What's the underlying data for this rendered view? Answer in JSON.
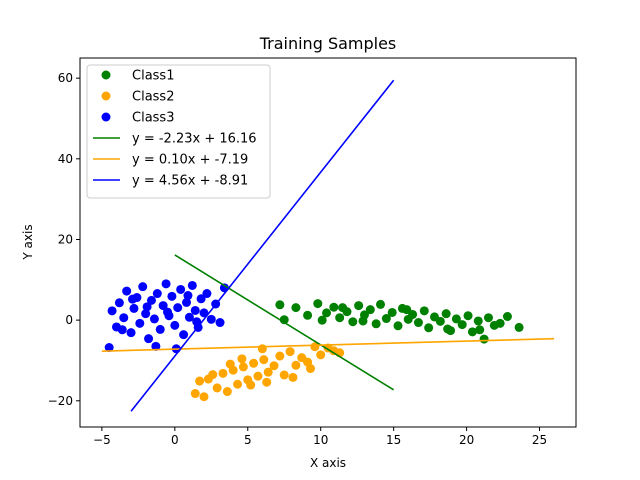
{
  "chart_data": {
    "type": "scatter",
    "title": "Training Samples",
    "xlabel": "X axis",
    "ylabel": "Y axis",
    "xlim": [
      -6.5,
      27.5
    ],
    "ylim": [
      -26.5,
      65
    ],
    "xticks": [
      -5,
      0,
      5,
      10,
      15,
      20,
      25
    ],
    "yticks": [
      -20,
      0,
      20,
      40,
      60
    ],
    "grid": false,
    "legend_position": "top-left",
    "scatter_series": [
      {
        "name": "Class1",
        "color": "#008000",
        "points": [
          [
            7.2,
            3.8
          ],
          [
            7.5,
            0.1
          ],
          [
            8.3,
            3.1
          ],
          [
            9.1,
            1.2
          ],
          [
            9.8,
            4.1
          ],
          [
            10.1,
            0.0
          ],
          [
            10.4,
            1.8
          ],
          [
            10.9,
            3.2
          ],
          [
            11.3,
            0.6
          ],
          [
            11.8,
            2.1
          ],
          [
            12.2,
            -0.4
          ],
          [
            12.6,
            3.6
          ],
          [
            13.0,
            1.3
          ],
          [
            13.4,
            2.6
          ],
          [
            13.8,
            -0.9
          ],
          [
            14.1,
            3.9
          ],
          [
            14.5,
            0.4
          ],
          [
            14.9,
            1.9
          ],
          [
            15.3,
            -1.4
          ],
          [
            15.6,
            2.9
          ],
          [
            16.0,
            0.2
          ],
          [
            16.3,
            1.4
          ],
          [
            16.7,
            -0.6
          ],
          [
            17.1,
            2.3
          ],
          [
            17.4,
            -1.9
          ],
          [
            17.8,
            0.8
          ],
          [
            18.2,
            -0.3
          ],
          [
            18.6,
            1.6
          ],
          [
            18.9,
            -2.6
          ],
          [
            19.3,
            0.3
          ],
          [
            19.7,
            -1.1
          ],
          [
            20.1,
            1.1
          ],
          [
            20.4,
            -2.9
          ],
          [
            20.8,
            -0.2
          ],
          [
            21.2,
            -4.7
          ],
          [
            21.5,
            0.6
          ],
          [
            21.9,
            -1.3
          ],
          [
            22.3,
            -0.8
          ],
          [
            22.8,
            0.9
          ],
          [
            23.6,
            -1.8
          ],
          [
            12.9,
            -0.2
          ],
          [
            15.9,
            2.6
          ],
          [
            18.7,
            -2.2
          ],
          [
            20.9,
            -2.4
          ],
          [
            11.5,
            3.1
          ]
        ]
      },
      {
        "name": "Class2",
        "color": "#ffa500",
        "points": [
          [
            1.4,
            -18.2
          ],
          [
            1.7,
            -15.1
          ],
          [
            2.0,
            -19.0
          ],
          [
            2.3,
            -14.6
          ],
          [
            2.9,
            -16.8
          ],
          [
            3.3,
            -13.2
          ],
          [
            3.6,
            -17.7
          ],
          [
            4.0,
            -12.4
          ],
          [
            4.3,
            -15.9
          ],
          [
            4.7,
            -11.6
          ],
          [
            5.0,
            -14.8
          ],
          [
            5.4,
            -10.7
          ],
          [
            5.7,
            -13.9
          ],
          [
            6.1,
            -9.8
          ],
          [
            6.4,
            -12.9
          ],
          [
            6.8,
            -11.3
          ],
          [
            7.2,
            -8.9
          ],
          [
            7.5,
            -13.6
          ],
          [
            7.9,
            -7.8
          ],
          [
            8.3,
            -11.2
          ],
          [
            8.7,
            -9.3
          ],
          [
            9.1,
            -10.4
          ],
          [
            9.6,
            -6.6
          ],
          [
            10.0,
            -8.6
          ],
          [
            10.5,
            -6.9
          ],
          [
            10.9,
            -7.6
          ],
          [
            11.3,
            -8.1
          ],
          [
            5.2,
            -16.1
          ],
          [
            6.3,
            -15.4
          ],
          [
            3.8,
            -10.9
          ],
          [
            4.6,
            -9.6
          ],
          [
            8.1,
            -14.2
          ],
          [
            6.0,
            -7.1
          ],
          [
            2.6,
            -13.5
          ],
          [
            9.3,
            -12.0
          ]
        ]
      },
      {
        "name": "Class3",
        "color": "#0000ff",
        "points": [
          [
            -4.5,
            -6.8
          ],
          [
            -4.3,
            2.3
          ],
          [
            -4.0,
            -1.7
          ],
          [
            -3.8,
            4.3
          ],
          [
            -3.5,
            0.6
          ],
          [
            -3.3,
            7.2
          ],
          [
            -3.0,
            -3.1
          ],
          [
            -2.8,
            2.9
          ],
          [
            -2.6,
            5.6
          ],
          [
            -2.4,
            -0.8
          ],
          [
            -2.2,
            8.3
          ],
          [
            -2.0,
            1.6
          ],
          [
            -1.8,
            -4.6
          ],
          [
            -1.6,
            4.9
          ],
          [
            -1.4,
            0.3
          ],
          [
            -1.2,
            6.6
          ],
          [
            -1.0,
            -2.3
          ],
          [
            -0.8,
            3.6
          ],
          [
            -0.6,
            9.0
          ],
          [
            -0.4,
            1.1
          ],
          [
            -0.2,
            5.9
          ],
          [
            0.0,
            -1.3
          ],
          [
            0.2,
            3.1
          ],
          [
            0.4,
            7.6
          ],
          [
            0.6,
            -3.6
          ],
          [
            0.8,
            4.4
          ],
          [
            1.0,
            0.7
          ],
          [
            1.2,
            8.6
          ],
          [
            1.4,
            2.4
          ],
          [
            1.6,
            -1.8
          ],
          [
            1.8,
            5.3
          ],
          [
            2.0,
            1.8
          ],
          [
            2.2,
            6.6
          ],
          [
            2.5,
            0.2
          ],
          [
            2.8,
            4.0
          ],
          [
            3.1,
            -0.6
          ],
          [
            3.4,
            8.0
          ],
          [
            -1.3,
            -6.5
          ],
          [
            0.1,
            -7.1
          ],
          [
            -2.9,
            5.2
          ],
          [
            -0.5,
            2.0
          ],
          [
            0.9,
            6.1
          ],
          [
            -1.9,
            3.3
          ],
          [
            1.5,
            -0.4
          ],
          [
            -3.6,
            -2.4
          ]
        ]
      }
    ],
    "line_series": [
      {
        "name": "y = -2.23x + 16.16",
        "color": "#008000",
        "slope": -2.23,
        "intercept": 16.16,
        "x_range": [
          0,
          15
        ]
      },
      {
        "name": "y = 0.10x + -7.19",
        "color": "#ffa500",
        "slope": 0.1,
        "intercept": -7.19,
        "x_range": [
          -5,
          26
        ]
      },
      {
        "name": "y = 4.56x + -8.91",
        "color": "#0000ff",
        "slope": 4.56,
        "intercept": -8.91,
        "x_range": [
          -3,
          15
        ]
      }
    ]
  }
}
